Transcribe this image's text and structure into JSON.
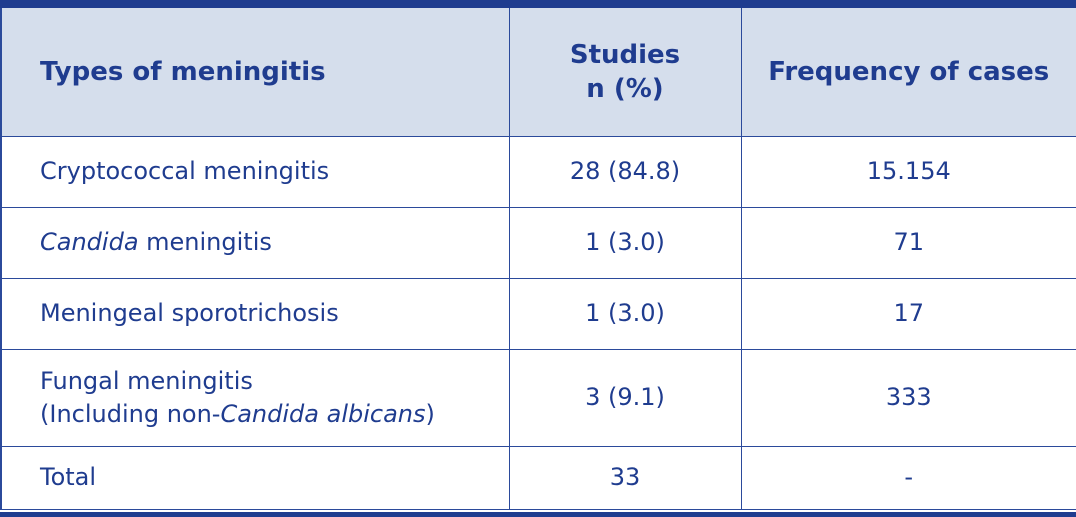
{
  "header": {
    "col_type": "Types of meningitis",
    "col_studies_line1": "Studies",
    "col_studies_line2": "n (%)",
    "col_frequency": "Frequency of cases"
  },
  "rows": [
    {
      "type": "Cryptococcal meningitis",
      "studies": "28 (84.8)",
      "frequency": "15.154"
    },
    {
      "type_italic": "Candida",
      "type_rest": " meningitis",
      "studies": "1 (3.0)",
      "frequency": "71"
    },
    {
      "type": "Meningeal sporotrichosis",
      "studies": "1 (3.0)",
      "frequency": "17"
    },
    {
      "type_line1": "Fungal meningitis",
      "type_line2_pre": "(Including non-",
      "type_line2_italic": "Candida albicans",
      "type_line2_post": ")",
      "studies": "3 (9.1)",
      "frequency": "333"
    },
    {
      "type": "Total",
      "studies": "33",
      "frequency": "-"
    }
  ],
  "colors": {
    "text": "#1f3c8f",
    "header_bg": "#d5deec",
    "border": "#2b4a9b"
  }
}
